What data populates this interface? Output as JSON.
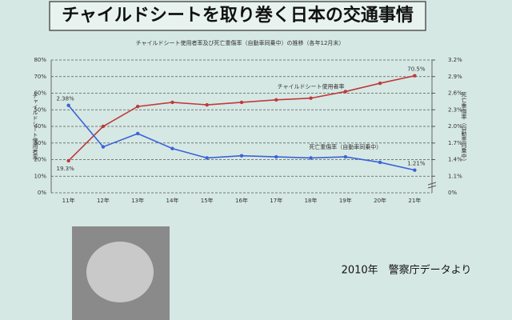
{
  "page_title": "チャイルドシートを取り巻く日本の交通事情",
  "caption": "2010年　警察庁データより",
  "chart_data": {
    "type": "line",
    "title": "チャイルドシート使用者率及び死亡重傷率（自動車同乗中）の推移（各年12月末）",
    "ylabel": "チャイルドシート使用者率",
    "y2label": "死亡重傷率（自動車同乗中）",
    "categories": [
      "11年",
      "12年",
      "13年",
      "14年",
      "15年",
      "16年",
      "17年",
      "18年",
      "19年",
      "20年",
      "21年"
    ],
    "series": [
      {
        "name": "チャイルドシート使用者率",
        "color": "#c0393b",
        "values": [
          19.3,
          40,
          52,
          54.5,
          53,
          54.5,
          56,
          57,
          61,
          66,
          70.5
        ],
        "value_labels": [
          "19.3%",
          null,
          null,
          null,
          null,
          null,
          null,
          null,
          null,
          null,
          "70.5%"
        ]
      },
      {
        "name": "死亡重傷率（自動車同乗中）",
        "color": "#3a63d8",
        "axis": "y2",
        "values": [
          2.38,
          1.63,
          1.87,
          1.6,
          1.43,
          1.47,
          1.45,
          1.43,
          1.45,
          1.35,
          1.21
        ],
        "value_labels": [
          "2.38%",
          null,
          null,
          null,
          null,
          null,
          null,
          null,
          null,
          null,
          "1.21%"
        ]
      }
    ],
    "ylim": [
      0,
      80
    ],
    "yticks": [
      {
        "value": 0,
        "label": "0%"
      },
      {
        "value": 10,
        "label": "10%"
      },
      {
        "value": 20,
        "label": "20%"
      },
      {
        "value": 30,
        "label": "30%"
      },
      {
        "value": 40,
        "label": "40%"
      },
      {
        "value": 50,
        "label": "50%"
      },
      {
        "value": 60,
        "label": "60%"
      },
      {
        "value": 70,
        "label": "70%"
      },
      {
        "value": 80,
        "label": "80%"
      }
    ],
    "y2lim": [
      0.8,
      3.2
    ],
    "y2ticks": [
      {
        "value": 1.1,
        "label": "1.1%"
      },
      {
        "value": 1.4,
        "label": "1.4%"
      },
      {
        "value": 1.7,
        "label": "1.7%"
      },
      {
        "value": 2.0,
        "label": "2.0%"
      },
      {
        "value": 2.3,
        "label": "2.3%"
      },
      {
        "value": 2.6,
        "label": "2.6%"
      },
      {
        "value": 2.9,
        "label": "2.9%"
      },
      {
        "value": 3.2,
        "label": "3.2%"
      }
    ],
    "y2_break_label": "0%",
    "grid": true
  }
}
